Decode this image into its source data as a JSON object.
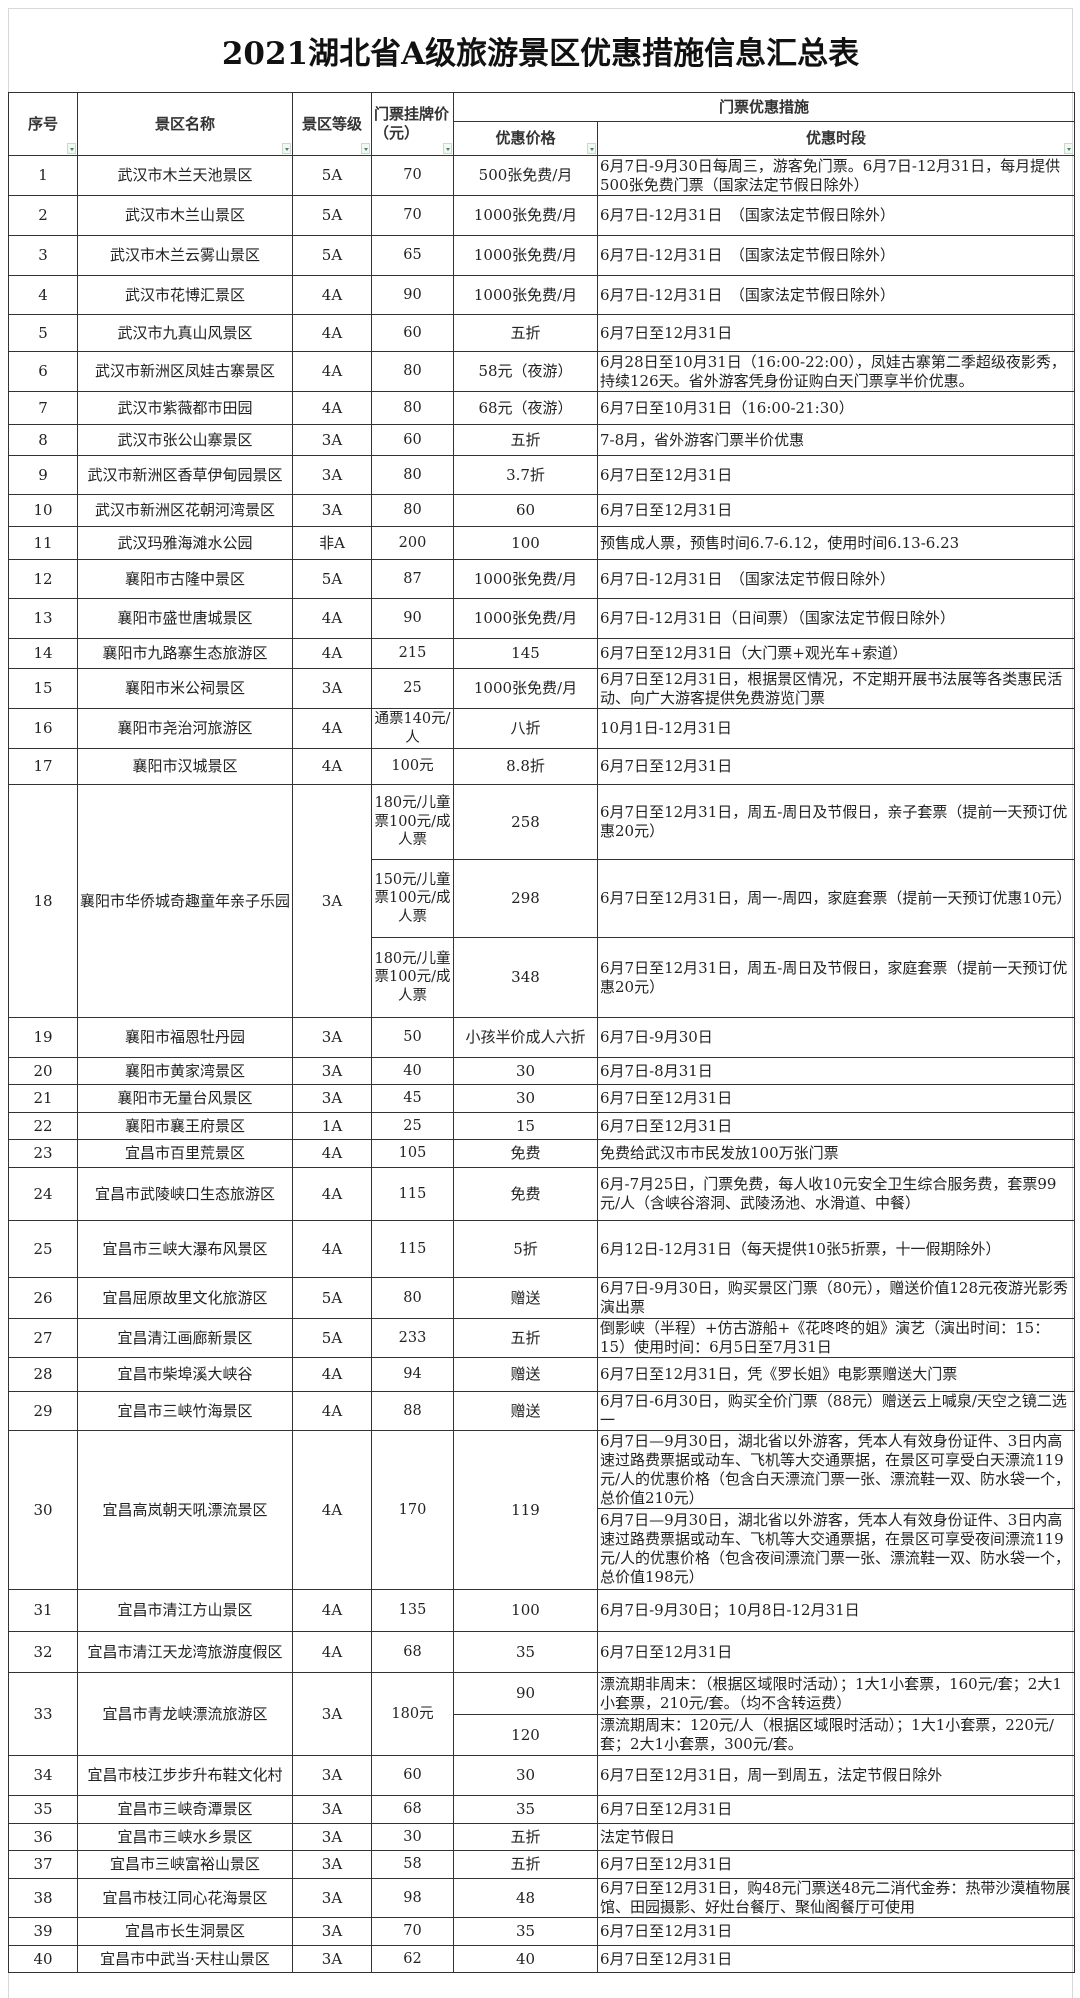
{
  "title": "2021湖北省A级旅游景区优惠措施信息汇总表",
  "header": {
    "no": "序号",
    "name": "景区名称",
    "level": "景区等级",
    "list_price": "门票挂牌价（元）",
    "measures": "门票优惠措施",
    "discount": "优惠价格",
    "period": "优惠时段",
    "filter_icon": "dropdown-filter-icon",
    "filter_color": "#3a8f5a"
  },
  "rows": [
    {
      "no": "1",
      "name": "武汉市木兰天池景区",
      "level": "5A",
      "price": "70",
      "discount": "500张免费/月",
      "subs": [
        {
          "period": "6月7日-9月30日每周三，游客免门票。6月7日-12月31日，每月提供500张免费门票（国家法定节假日除外）"
        }
      ]
    },
    {
      "no": "2",
      "name": "武汉市木兰山景区",
      "level": "5A",
      "price": "70",
      "discount": "1000张免费/月",
      "subs": [
        {
          "period": "6月7日-12月31日　（国家法定节假日除外）"
        }
      ]
    },
    {
      "no": "3",
      "name": "武汉市木兰云雾山景区",
      "level": "5A",
      "price": "65",
      "discount": "1000张免费/月",
      "subs": [
        {
          "period": "6月7日-12月31日　（国家法定节假日除外）"
        }
      ]
    },
    {
      "no": "4",
      "name": "武汉市花博汇景区",
      "level": "4A",
      "price": "90",
      "discount": "1000张免费/月",
      "subs": [
        {
          "period": "6月7日-12月31日　（国家法定节假日除外）"
        }
      ]
    },
    {
      "no": "5",
      "name": "武汉市九真山风景区",
      "level": "4A",
      "price": "60",
      "discount": "五折",
      "subs": [
        {
          "period": "6月7日至12月31日"
        }
      ]
    },
    {
      "no": "6",
      "name": "武汉市新洲区凤娃古寨景区",
      "level": "4A",
      "price": "80",
      "discount": "58元（夜游）",
      "subs": [
        {
          "period": "6月28日至10月31日（16:00-22:00），凤娃古寨第二季超级夜影秀，持续126天。省外游客凭身份证购白天门票享半价优惠。"
        }
      ]
    },
    {
      "no": "7",
      "name": "武汉市紫薇都市田园",
      "level": "4A",
      "price": "80",
      "discount": "68元（夜游）",
      "subs": [
        {
          "period": "6月7日至10月31日（16:00-21:30）"
        }
      ]
    },
    {
      "no": "8",
      "name": "武汉市张公山寨景区",
      "level": "3A",
      "price": "60",
      "discount": "五折",
      "subs": [
        {
          "period": "7-8月，省外游客门票半价优惠"
        }
      ]
    },
    {
      "no": "9",
      "name": "武汉市新洲区香草伊甸园景区",
      "level": "3A",
      "price": "80",
      "discount": "3.7折",
      "subs": [
        {
          "period": "6月7日至12月31日"
        }
      ]
    },
    {
      "no": "10",
      "name": "武汉市新洲区花朝河湾景区",
      "level": "3A",
      "price": "80",
      "discount": "60",
      "subs": [
        {
          "period": "6月7日至12月31日"
        }
      ]
    },
    {
      "no": "11",
      "name": "武汉玛雅海滩水公园",
      "level": "非A",
      "price": "200",
      "discount": "100",
      "subs": [
        {
          "period": "预售成人票，预售时间6.7-6.12，使用时间6.13-6.23"
        }
      ]
    },
    {
      "no": "12",
      "name": "襄阳市古隆中景区",
      "level": "5A",
      "price": "87",
      "discount": "1000张免费/月",
      "subs": [
        {
          "period": "6月7日-12月31日　（国家法定节假日除外）"
        }
      ]
    },
    {
      "no": "13",
      "name": "襄阳市盛世唐城景区",
      "level": "4A",
      "price": "90",
      "discount": "1000张免费/月",
      "subs": [
        {
          "period": "6月7日-12月31日（日间票）（国家法定节假日除外）"
        }
      ]
    },
    {
      "no": "14",
      "name": "襄阳市九路寨生态旅游区",
      "level": "4A",
      "price": "215",
      "discount": "145",
      "subs": [
        {
          "period": "6月7日至12月31日（大门票+观光车+索道）"
        }
      ]
    },
    {
      "no": "15",
      "name": "襄阳市米公祠景区",
      "level": "3A",
      "price": "25",
      "discount": "1000张免费/月",
      "subs": [
        {
          "period": "6月7日至12月31日，根据景区情况，不定期开展书法展等各类惠民活动、向广大游客提供免费游览门票"
        }
      ]
    },
    {
      "no": "16",
      "name": "襄阳市尧治河旅游区",
      "level": "4A",
      "price": "通票140元/人",
      "discount": "八折",
      "subs": [
        {
          "period": "10月1日-12月31日"
        }
      ]
    },
    {
      "no": "17",
      "name": "襄阳市汉城景区",
      "level": "4A",
      "price": "100元",
      "discount": "8.8折",
      "subs": [
        {
          "period": "6月7日至12月31日"
        }
      ]
    },
    {
      "no": "18",
      "name": "襄阳市华侨城奇趣童年亲子乐园",
      "level": "3A",
      "subs": [
        {
          "price": "180元/儿童票100元/成人票",
          "discount": "258",
          "period": "6月7日至12月31日，周五-周日及节假日，亲子套票（提前一天预订优惠20元）"
        },
        {
          "price": "150元/儿童票100元/成人票",
          "discount": "298",
          "period": "6月7日至12月31日，周一-周四，家庭套票（提前一天预订优惠10元）"
        },
        {
          "price": "180元/儿童票100元/成人票",
          "discount": "348",
          "period": "6月7日至12月31日，周五-周日及节假日，家庭套票（提前一天预订优惠20元）"
        }
      ]
    },
    {
      "no": "19",
      "name": "襄阳市福恩牡丹园",
      "level": "3A",
      "price": "50",
      "discount": "小孩半价成人六折",
      "subs": [
        {
          "period": "6月7日-9月30日"
        }
      ]
    },
    {
      "no": "20",
      "name": "襄阳市黄家湾景区",
      "level": "3A",
      "price": "40",
      "discount": "30",
      "subs": [
        {
          "period": "6月7日-8月31日"
        }
      ]
    },
    {
      "no": "21",
      "name": "襄阳市无量台风景区",
      "level": "3A",
      "price": "45",
      "discount": "30",
      "subs": [
        {
          "period": "6月7日至12月31日"
        }
      ]
    },
    {
      "no": "22",
      "name": "襄阳市襄王府景区",
      "level": "1A",
      "price": "25",
      "discount": "15",
      "subs": [
        {
          "period": "6月7日至12月31日"
        }
      ]
    },
    {
      "no": "23",
      "name": "宜昌市百里荒景区",
      "level": "4A",
      "price": "105",
      "discount": "免费",
      "subs": [
        {
          "period": "免费给武汉市市民发放100万张门票"
        }
      ]
    },
    {
      "no": "24",
      "name": "宜昌市武陵峡口生态旅游区",
      "level": "4A",
      "price": "115",
      "discount": "免费",
      "subs": [
        {
          "period": "6月-7月25日，门票免费，每人收10元安全卫生综合服务费，套票99元/人（含峡谷溶洞、武陵汤池、水滑道、中餐）"
        }
      ]
    },
    {
      "no": "25",
      "name": "宜昌市三峡大瀑布风景区",
      "level": "4A",
      "price": "115",
      "discount": "5折",
      "subs": [
        {
          "period": "6月12日-12月31日（每天提供10张5折票，十一假期除外）"
        }
      ]
    },
    {
      "no": "26",
      "name": "宜昌屈原故里文化旅游区",
      "level": "5A",
      "price": "80",
      "discount": "赠送",
      "subs": [
        {
          "period": "6月7日-9月30日，购买景区门票（80元），赠送价值128元夜游光影秀演出票"
        }
      ]
    },
    {
      "no": "27",
      "name": "宜昌清江画廊新景区",
      "level": "5A",
      "price": "233",
      "discount": "五折",
      "subs": [
        {
          "period": "倒影峡（半程）+仿古游船+《花咚咚的姐》演艺（演出时间：15：15）使用时间：6月5日至7月31日"
        }
      ]
    },
    {
      "no": "28",
      "name": "宜昌市柴埠溪大峡谷",
      "level": "4A",
      "price": "94",
      "discount": "赠送",
      "subs": [
        {
          "period": "6月7日至12月31日，凭《罗长姐》电影票赠送大门票"
        }
      ]
    },
    {
      "no": "29",
      "name": "宜昌市三峡竹海景区",
      "level": "4A",
      "price": "88",
      "discount": "赠送",
      "subs": [
        {
          "period": "6月7日-6月30日，购买全价门票（88元）赠送云上喊泉/天空之镜二选一"
        }
      ]
    },
    {
      "no": "30",
      "name": "宜昌高岚朝天吼漂流景区",
      "level": "4A",
      "price": "170",
      "discount": "119",
      "subs": [
        {
          "period": "6月7日—9月30日，湖北省以外游客，凭本人有效身份证件、3日内高速过路费票据或动车、飞机等大交通票据，在景区可享受白天漂流119元/人的优惠价格（包含白天漂流门票一张、漂流鞋一双、防水袋一个，总价值210元）"
        },
        {
          "period": "6月7日—9月30日，湖北省以外游客，凭本人有效身份证件、3日内高速过路费票据或动车、飞机等大交通票据，在景区可享受夜间漂流119元/人的优惠价格（包含夜间漂流门票一张、漂流鞋一双、防水袋一个，总价值198元）"
        }
      ]
    },
    {
      "no": "31",
      "name": "宜昌市清江方山景区",
      "level": "4A",
      "price": "135",
      "discount": "100",
      "subs": [
        {
          "period": "6月7日-9月30日；10月8日-12月31日"
        }
      ]
    },
    {
      "no": "32",
      "name": "宜昌市清江天龙湾旅游度假区",
      "level": "4A",
      "price": "68",
      "discount": "35",
      "subs": [
        {
          "period": "6月7日至12月31日"
        }
      ]
    },
    {
      "no": "33",
      "name": "宜昌市青龙峡漂流旅游区",
      "level": "3A",
      "price": "180元",
      "subs": [
        {
          "discount": "90",
          "period": "漂流期非周末：（根据区域限时活动）；1大1小套票，160元/套；2大1小套票，210元/套。（均不含转运费）"
        },
        {
          "discount": "120",
          "period": "漂流期周末：120元/人（根据区域限时活动）；1大1小套票，220元/套；2大1小套票，300元/套。"
        }
      ]
    },
    {
      "no": "34",
      "name": "宜昌市枝江步步升布鞋文化村",
      "level": "3A",
      "price": "60",
      "discount": "30",
      "subs": [
        {
          "period": "6月7日至12月31日，周一到周五，法定节假日除外"
        }
      ]
    },
    {
      "no": "35",
      "name": "宜昌市三峡奇潭景区",
      "level": "3A",
      "price": "68",
      "discount": "35",
      "subs": [
        {
          "period": "6月7日至12月31日"
        }
      ]
    },
    {
      "no": "36",
      "name": "宜昌市三峡水乡景区",
      "level": "3A",
      "price": "30",
      "discount": "五折",
      "subs": [
        {
          "period": "法定节假日"
        }
      ]
    },
    {
      "no": "37",
      "name": "宜昌市三峡富裕山景区",
      "level": "3A",
      "price": "58",
      "discount": "五折",
      "subs": [
        {
          "period": "6月7日至12月31日"
        }
      ]
    },
    {
      "no": "38",
      "name": "宜昌市枝江同心花海景区",
      "level": "3A",
      "price": "98",
      "discount": "48",
      "subs": [
        {
          "period": "6月7日至12月31日，购48元门票送48元二消代金券：热带沙漠植物展馆、田园摄影、好灶台餐厅、聚仙阁餐厅可使用"
        }
      ]
    },
    {
      "no": "39",
      "name": "宜昌市长生洞景区",
      "level": "3A",
      "price": "70",
      "discount": "35",
      "subs": [
        {
          "period": "6月7日至12月31日"
        }
      ]
    },
    {
      "no": "40",
      "name": "宜昌市中武当·天柱山景区",
      "level": "3A",
      "price": "62",
      "discount": "40",
      "subs": [
        {
          "period": "6月7日至12月31日"
        }
      ]
    }
  ]
}
